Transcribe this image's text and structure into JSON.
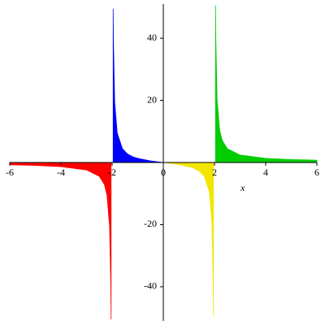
{
  "chart_data": {
    "type": "area",
    "x_label": "x",
    "xlim": [
      -6,
      6
    ],
    "ylim": [
      -51,
      51
    ],
    "xticks": [
      -6,
      -4,
      -2,
      0,
      2,
      4,
      6
    ],
    "yticks": [
      -40,
      -20,
      20,
      40
    ],
    "series": [
      {
        "color": "#ff0000",
        "x": [
          -6,
          -5,
          -4,
          -3,
          -2.5,
          -2.3,
          -2.2,
          -2.1,
          -2.05,
          -2.04
        ],
        "values": [
          -0.75,
          -0.952,
          -1.333,
          -2.4,
          -4.444,
          -7.132,
          -10.476,
          -20.488,
          -40.494,
          -50.495
        ]
      },
      {
        "color": "#0000ff",
        "x": [
          -1.96,
          -1.95,
          -1.9,
          -1.8,
          -1.6,
          -1.4,
          -1.2,
          -1,
          -0.5,
          0
        ],
        "values": [
          49.495,
          39.494,
          19.487,
          9.474,
          4.444,
          2.745,
          1.875,
          1.333,
          0.533,
          0
        ]
      },
      {
        "color": "#f2e600",
        "x": [
          0,
          0.5,
          1,
          1.2,
          1.4,
          1.6,
          1.8,
          1.9,
          1.95,
          1.96
        ],
        "values": [
          0,
          -0.533,
          -1.333,
          -1.875,
          -2.745,
          -4.444,
          -9.474,
          -19.487,
          -39.494,
          -49.495
        ]
      },
      {
        "color": "#00cc00",
        "x": [
          2.04,
          2.05,
          2.1,
          2.2,
          2.3,
          2.5,
          3,
          4,
          5,
          6
        ],
        "values": [
          50.495,
          40.494,
          20.488,
          10.476,
          7.132,
          4.444,
          2.4,
          1.333,
          0.952,
          0.75
        ]
      }
    ]
  }
}
